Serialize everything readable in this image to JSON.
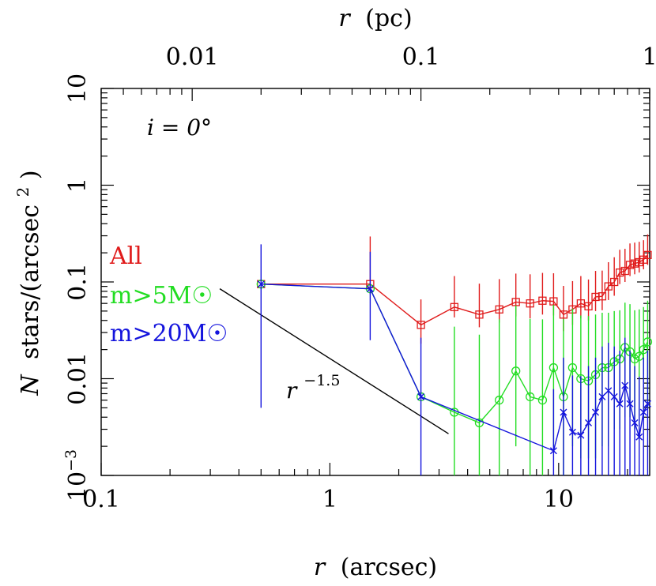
{
  "chart_data": {
    "type": "scatter",
    "xlabel": "r (arcsec)",
    "xlabel_var": "r",
    "xlabel_unit": "(arcsec)",
    "top_xlabel_var": "r",
    "top_xlabel_unit": "(pc)",
    "ylabel_var": "N",
    "ylabel_text": "stars/(arcsec",
    "ylabel_sup": "2",
    "ylabel_close": ")",
    "annotation": {
      "text": "i  =  0°"
    },
    "x_log": true,
    "y_log": true,
    "xlim": [
      0.1,
      25
    ],
    "ylim": [
      0.001,
      10
    ],
    "x_ticks": [
      {
        "value": 0.1,
        "label": "0.1"
      },
      {
        "value": 1,
        "label": "1"
      },
      {
        "value": 10,
        "label": "10"
      }
    ],
    "y_ticks": [
      {
        "value": 0.001,
        "label": "10",
        "sup": "−3"
      },
      {
        "value": 0.01,
        "label": "0.01"
      },
      {
        "value": 0.1,
        "label": "0.1"
      },
      {
        "value": 1,
        "label": "1"
      },
      {
        "value": 10,
        "label": "10"
      }
    ],
    "top_ticks": [
      {
        "value": 0.01,
        "label": "0.01"
      },
      {
        "value": 0.1,
        "label": "0.1"
      },
      {
        "value": 1,
        "label": "1"
      }
    ],
    "top_axis_pc_per_arcsec": 0.04,
    "series": [
      {
        "name": "All",
        "color": "#e01b1b",
        "marker": "square",
        "x": [
          0.5,
          1.5,
          2.5,
          3.5,
          4.5,
          5.5,
          6.5,
          7.5,
          8.5,
          9.5,
          10.5,
          11.5,
          12.5,
          13.5,
          14.5,
          15.5,
          16.5,
          17.5,
          18.5,
          19.5,
          20.5,
          21.5,
          22.5,
          23.5,
          24.5
        ],
        "y": [
          0.095,
          0.095,
          0.036,
          0.055,
          0.046,
          0.052,
          0.062,
          0.06,
          0.064,
          0.063,
          0.046,
          0.052,
          0.06,
          0.056,
          0.07,
          0.071,
          0.09,
          0.1,
          0.125,
          0.13,
          0.15,
          0.155,
          0.16,
          0.17,
          0.19
        ],
        "err_lo": [
          0.0,
          0.02,
          0.013,
          0.012,
          0.012,
          0.014,
          0.018,
          0.018,
          0.018,
          0.018,
          0.015,
          0.016,
          0.018,
          0.016,
          0.02,
          0.02,
          0.025,
          0.028,
          0.03,
          0.03,
          0.035,
          0.035,
          0.035,
          0.035,
          0.04
        ],
        "err_hi": [
          0.0,
          0.2,
          0.03,
          0.06,
          0.05,
          0.055,
          0.06,
          0.06,
          0.06,
          0.06,
          0.045,
          0.05,
          0.055,
          0.05,
          0.06,
          0.06,
          0.07,
          0.08,
          0.09,
          0.09,
          0.1,
          0.1,
          0.1,
          0.1,
          0.12
        ]
      },
      {
        "name": "m>5M☉",
        "color": "#22dd22",
        "marker": "circle",
        "x": [
          0.5,
          1.5,
          2.5,
          3.5,
          4.5,
          5.5,
          6.5,
          7.5,
          8.5,
          9.5,
          10.5,
          11.5,
          12.5,
          13.5,
          14.5,
          15.5,
          16.5,
          17.5,
          18.5,
          19.5,
          20.5,
          21.5,
          22.5,
          23.5,
          24.5
        ],
        "y": [
          0.095,
          0.085,
          0.0065,
          0.0045,
          0.0035,
          0.006,
          0.012,
          0.0065,
          0.006,
          0.013,
          0.0065,
          0.013,
          0.01,
          0.0095,
          0.011,
          0.013,
          0.013,
          0.015,
          0.016,
          0.021,
          0.019,
          0.016,
          0.017,
          0.02,
          0.024
        ],
        "err_lo": [
          0.0,
          0.0,
          0.0,
          0.004,
          0.003,
          0.005,
          0.01,
          0.0055,
          0.005,
          0.011,
          0.0055,
          0.011,
          0.0085,
          0.008,
          0.0095,
          0.011,
          0.011,
          0.012,
          0.013,
          0.017,
          0.015,
          0.013,
          0.014,
          0.016,
          0.019
        ],
        "err_hi": [
          0.0,
          0.0,
          0.0,
          0.03,
          0.025,
          0.035,
          0.045,
          0.035,
          0.035,
          0.045,
          0.035,
          0.04,
          0.035,
          0.035,
          0.035,
          0.035,
          0.035,
          0.035,
          0.035,
          0.04,
          0.04,
          0.035,
          0.035,
          0.035,
          0.04
        ]
      },
      {
        "name": "m>20M☉",
        "color": "#1414dd",
        "marker": "x",
        "x": [
          0.5,
          1.5,
          2.5,
          9.5,
          10.5,
          11.5,
          12.5,
          13.5,
          14.5,
          15.5,
          16.5,
          17.5,
          18.5,
          19.5,
          20.5,
          21.5,
          22.5,
          23.5,
          24.5
        ],
        "y": [
          0.095,
          0.085,
          0.0065,
          0.0018,
          0.0045,
          0.0028,
          0.0026,
          0.0035,
          0.0045,
          0.0065,
          0.0075,
          0.0065,
          0.0055,
          0.0085,
          0.0055,
          0.0035,
          0.0025,
          0.0045,
          0.0055
        ],
        "err_lo": [
          0.09,
          0.06,
          0.0055,
          0.0015,
          0.004,
          0.0025,
          0.0023,
          0.003,
          0.004,
          0.0055,
          0.0065,
          0.0055,
          0.0048,
          0.0075,
          0.0048,
          0.003,
          0.0022,
          0.004,
          0.0048
        ],
        "err_hi": [
          0.15,
          0.12,
          0.02,
          0.006,
          0.012,
          0.008,
          0.008,
          0.01,
          0.012,
          0.015,
          0.016,
          0.015,
          0.014,
          0.018,
          0.014,
          0.01,
          0.008,
          0.012,
          0.014
        ]
      }
    ],
    "reference_line": {
      "label_var": "r",
      "label_sup": "−1.5",
      "color": "#000000",
      "x": [
        0.33,
        3.3
      ],
      "y": [
        0.085,
        0.0027
      ]
    }
  }
}
